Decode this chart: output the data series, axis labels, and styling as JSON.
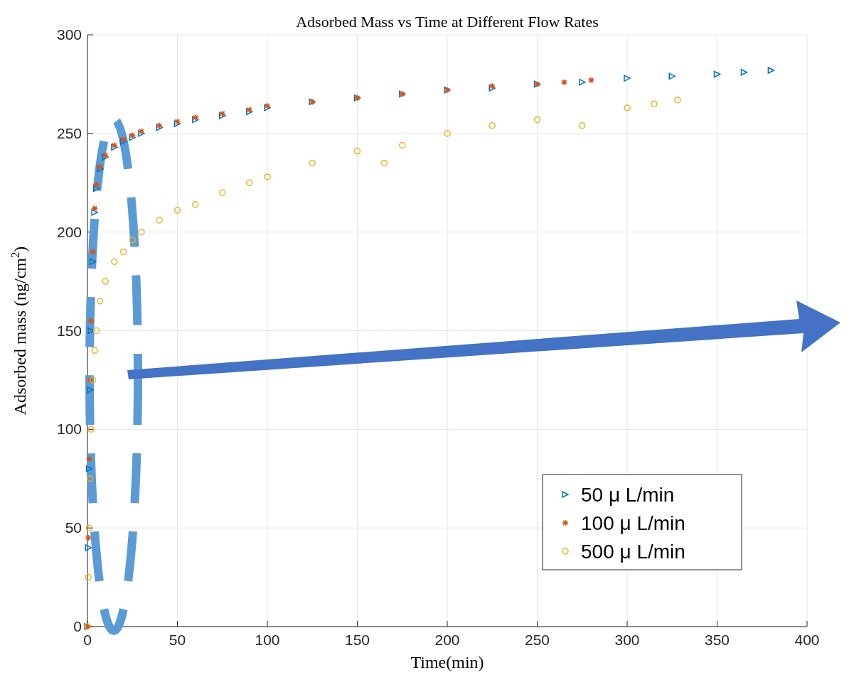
{
  "chart_data": {
    "type": "scatter",
    "title": "Adsorbed Mass vs Time at Different Flow Rates",
    "xlabel": "Time(min)",
    "ylabel": "Adsorbed mass (ng/cm$^{2}$)",
    "xlim": [
      0,
      400
    ],
    "xticks": [
      0,
      50,
      100,
      150,
      200,
      250,
      300,
      350,
      400
    ],
    "ylim": [
      0,
      300
    ],
    "yticks": [
      0,
      50,
      100,
      150,
      200,
      250,
      300
    ],
    "grid": true,
    "legend": "bottom right",
    "series": [
      {
        "name": "50 μ L/min",
        "color": "#0072bd",
        "marker": "triangle",
        "x": [
          0,
          0.5,
          1,
          1.5,
          2,
          3,
          4,
          5,
          7,
          10,
          15,
          20,
          25,
          30,
          40,
          50,
          60,
          75,
          90,
          100,
          125,
          150,
          175,
          200,
          225,
          250,
          275,
          300,
          325,
          350,
          365,
          380
        ],
        "values": [
          0,
          40,
          80,
          120,
          150,
          185,
          210,
          222,
          232,
          238,
          243,
          246,
          248,
          250,
          253,
          255,
          257,
          259,
          261,
          263,
          266,
          268,
          270,
          272,
          273,
          275,
          276,
          278,
          279,
          280,
          281,
          282
        ]
      },
      {
        "name": "100 μ L/min",
        "color": "#d95319",
        "marker": "cross",
        "x": [
          0,
          0.5,
          1,
          1.5,
          2,
          3,
          4,
          5,
          7,
          10,
          15,
          20,
          25,
          30,
          40,
          50,
          60,
          75,
          90,
          100,
          125,
          150,
          175,
          200,
          225,
          250,
          265,
          280
        ],
        "values": [
          0,
          45,
          85,
          125,
          155,
          190,
          212,
          224,
          233,
          239,
          244,
          247,
          249,
          251,
          254,
          256,
          258,
          260,
          262,
          264,
          266,
          268,
          270,
          272,
          274,
          275,
          276,
          277
        ]
      },
      {
        "name": "500 μ L/min",
        "color": "#edb120",
        "marker": "circle",
        "x": [
          0,
          0.5,
          1,
          1.5,
          2,
          3,
          4,
          5,
          7,
          10,
          15,
          20,
          25,
          30,
          40,
          50,
          60,
          75,
          90,
          100,
          125,
          150,
          165,
          175,
          200,
          225,
          250,
          275,
          300,
          315,
          328
        ],
        "values": [
          0,
          25,
          50,
          75,
          100,
          125,
          140,
          150,
          165,
          175,
          185,
          190,
          196,
          200,
          206,
          211,
          214,
          220,
          225,
          228,
          235,
          241,
          235,
          244,
          250,
          254,
          257,
          254,
          263,
          265,
          267
        ]
      }
    ]
  }
}
